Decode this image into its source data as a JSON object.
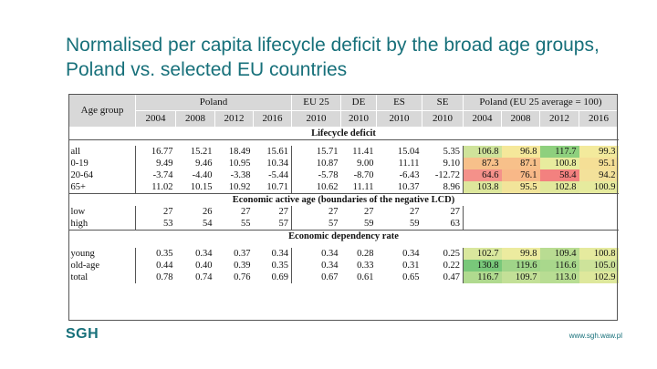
{
  "title": "Normalised per capita lifecycle deficit by the broad age groups, Poland vs. selected EU countries",
  "header": {
    "age_group_label": "Age group",
    "groups": [
      "Poland",
      "EU 25",
      "DE",
      "ES",
      "SE",
      "Poland (EU 25 average = 100)"
    ],
    "years": [
      "2004",
      "2008",
      "2012",
      "2016",
      "2010",
      "2010",
      "2010",
      "2010",
      "2004",
      "2008",
      "2012",
      "2016"
    ]
  },
  "sections": {
    "deficit": "Lifecycle deficit",
    "active_age": "Economic active age (boundaries of the negative LCD)",
    "dependency": "Economic dependency rate"
  },
  "deficit_rows": [
    {
      "label": "all",
      "values": [
        "16.77",
        "15.21",
        "18.49",
        "15.61",
        "15.71",
        "11.41",
        "15.04",
        "5.35"
      ],
      "index": [
        "106.8",
        "96.8",
        "117.7",
        "99.3"
      ]
    },
    {
      "label": "0-19",
      "values": [
        "9.49",
        "9.46",
        "10.95",
        "10.34",
        "10.87",
        "9.00",
        "11.11",
        "9.10"
      ],
      "index": [
        "87.3",
        "87.1",
        "100.8",
        "95.1"
      ]
    },
    {
      "label": "20-64",
      "values": [
        "-3.74",
        "-4.40",
        "-3.38",
        "-5.44",
        "-5.78",
        "-8.70",
        "-6.43",
        "-12.72"
      ],
      "index": [
        "64.6",
        "76.1",
        "58.4",
        "94.2"
      ]
    },
    {
      "label": "65+",
      "values": [
        "11.02",
        "10.15",
        "10.92",
        "10.71",
        "10.62",
        "11.11",
        "10.37",
        "8.96"
      ],
      "index": [
        "103.8",
        "95.5",
        "102.8",
        "100.9"
      ]
    }
  ],
  "active_rows": [
    {
      "label": "low",
      "values": [
        "27",
        "26",
        "27",
        "27",
        "27",
        "27",
        "27",
        "27"
      ]
    },
    {
      "label": "high",
      "values": [
        "53",
        "54",
        "55",
        "57",
        "57",
        "59",
        "59",
        "63"
      ]
    }
  ],
  "dependency_rows": [
    {
      "label": "young",
      "values": [
        "0.35",
        "0.34",
        "0.37",
        "0.34",
        "0.34",
        "0.28",
        "0.34",
        "0.25"
      ],
      "index": [
        "102.7",
        "99.8",
        "109.4",
        "100.8"
      ]
    },
    {
      "label": "old-age",
      "values": [
        "0.44",
        "0.40",
        "0.39",
        "0.35",
        "0.34",
        "0.33",
        "0.31",
        "0.22"
      ],
      "index": [
        "130.8",
        "119.6",
        "116.6",
        "105.0"
      ]
    },
    {
      "label": "total",
      "values": [
        "0.78",
        "0.74",
        "0.76",
        "0.69",
        "0.67",
        "0.61",
        "0.65",
        "0.47"
      ],
      "index": [
        "116.7",
        "109.7",
        "113.0",
        "102.9"
      ]
    }
  ],
  "index_colors": {
    "deficit": [
      [
        "#cfe39a",
        "#f5e89a",
        "#8ed07e",
        "#f3ea9c"
      ],
      [
        "#f7c08a",
        "#f7c08a",
        "#e8ec9e",
        "#f5df96"
      ],
      [
        "#f4918a",
        "#f8b888",
        "#f3817f",
        "#f3e19a"
      ],
      [
        "#dde79c",
        "#f2e49a",
        "#e1e89c",
        "#e6eb9e"
      ]
    ],
    "dependency": [
      [
        "#d9e79d",
        "#eceb9f",
        "#b9dc92",
        "#e5ea9e"
      ],
      [
        "#79c87a",
        "#a0d589",
        "#a9d88c",
        "#cde39a"
      ],
      [
        "#b0da8f",
        "#c3e097",
        "#b8dd93",
        "#dee89c"
      ]
    ]
  },
  "footer": {
    "logo": "SGH",
    "url": "www.sgh.waw.pl"
  }
}
